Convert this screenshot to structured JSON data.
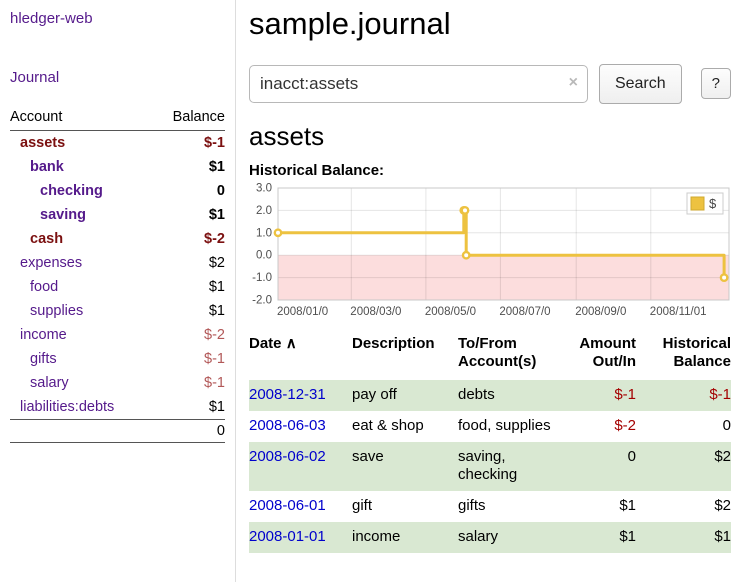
{
  "colors": {
    "link_purple": "#551a8b",
    "link_blue": "#0000cc",
    "negative_red": "#a40000",
    "negative_dark_red": "#7b1010",
    "row_green": "#d9e8d2",
    "series_gold": "#edc240",
    "chart_negative_fill": "#fcdddd"
  },
  "app": {
    "title": "hledger-web"
  },
  "sidebar": {
    "journal_label": "Journal",
    "header": {
      "account": "Account",
      "balance": "Balance"
    },
    "accounts": [
      {
        "name": "assets",
        "balance": "$-1",
        "indent": 1,
        "bold": true,
        "selected": true,
        "negative": true
      },
      {
        "name": "bank",
        "balance": "$1",
        "indent": 2,
        "bold": true
      },
      {
        "name": "checking",
        "balance": "0",
        "indent": 3,
        "bold": true
      },
      {
        "name": "saving",
        "balance": "$1",
        "indent": 3,
        "bold": true
      },
      {
        "name": "cash",
        "balance": "$-2",
        "indent": 2,
        "bold": true,
        "selected": true,
        "negative": true
      },
      {
        "name": "expenses",
        "balance": "$2",
        "indent": 1
      },
      {
        "name": "food",
        "balance": "$1",
        "indent": 2
      },
      {
        "name": "supplies",
        "balance": "$1",
        "indent": 2
      },
      {
        "name": "income",
        "balance": "$-2",
        "indent": 1,
        "negative": true
      },
      {
        "name": "gifts",
        "balance": "$-1",
        "indent": 2,
        "negative": true
      },
      {
        "name": "salary",
        "balance": "$-1",
        "indent": 2,
        "negative": true
      },
      {
        "name": "liabilities:debts",
        "balance": "$1",
        "indent": 1
      }
    ],
    "total": "0"
  },
  "main": {
    "title": "sample.journal",
    "account_heading": "assets"
  },
  "search": {
    "query": "inacct:assets",
    "clear_icon": "×",
    "button_label": "Search",
    "help_label": "?"
  },
  "chart_data": {
    "type": "line",
    "step": true,
    "title": "Historical Balance:",
    "series": [
      {
        "name": "$",
        "color": "#edc240",
        "points": [
          {
            "date": "2008-01-01",
            "value": 1
          },
          {
            "date": "2008-06-01",
            "value": 2
          },
          {
            "date": "2008-06-02",
            "value": 2
          },
          {
            "date": "2008-06-03",
            "value": 0
          },
          {
            "date": "2008-12-31",
            "value": -1
          }
        ]
      }
    ],
    "ylim": [
      -2.0,
      3.0
    ],
    "y_ticks": [
      3.0,
      2.0,
      1.0,
      0.0,
      -1.0,
      -2.0
    ],
    "x_range": [
      "2008-01-01",
      "2009-01-04"
    ],
    "x_ticks": [
      {
        "date": "2008-01-01",
        "label": "2008/01/0"
      },
      {
        "date": "2008-03-01",
        "label": "2008/03/0"
      },
      {
        "date": "2008-05-01",
        "label": "2008/05/0"
      },
      {
        "date": "2008-07-01",
        "label": "2008/07/0"
      },
      {
        "date": "2008-09-01",
        "label": "2008/09/0"
      },
      {
        "date": "2008-11-01",
        "label": "2008/11/01"
      }
    ],
    "legend": {
      "label": "$",
      "position": "top-right"
    },
    "negative_region_shaded": true,
    "grid": true
  },
  "register": {
    "headers": {
      "date": "Date",
      "sort_indicator": "∧",
      "description": "Description",
      "accounts": "To/From Account(s)",
      "amount": "Amount Out/In",
      "balance": "Historical Balance"
    },
    "rows": [
      {
        "date": "2008-12-31",
        "description": "pay off",
        "accounts": "debts",
        "amount": "$-1",
        "amount_negative": true,
        "balance": "$-1",
        "balance_negative": true,
        "shaded": true
      },
      {
        "date": "2008-06-03",
        "description": "eat & shop",
        "accounts": "food, supplies",
        "amount": "$-2",
        "amount_negative": true,
        "balance": "0",
        "shaded": false
      },
      {
        "date": "2008-06-02",
        "description": "save",
        "accounts": "saving, checking",
        "amount": "0",
        "balance": "$2",
        "shaded": true
      },
      {
        "date": "2008-06-01",
        "description": "gift",
        "accounts": "gifts",
        "amount": "$1",
        "balance": "$2",
        "shaded": false
      },
      {
        "date": "2008-01-01",
        "description": "income",
        "accounts": "salary",
        "amount": "$1",
        "balance": "$1",
        "shaded": true
      }
    ]
  }
}
